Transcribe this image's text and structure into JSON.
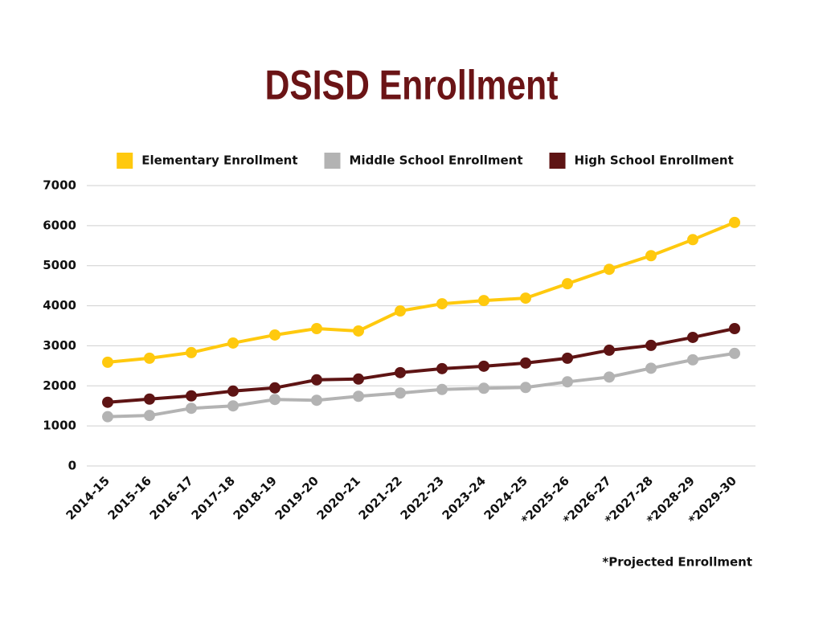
{
  "chart_data": {
    "type": "line",
    "title": "DSISD Enrollment",
    "categories": [
      "2014-15",
      "2015-16",
      "2016-17",
      "2017-18",
      "2018-19",
      "2019-20",
      "2020-21",
      "2021-22",
      "2022-23",
      "2023-24",
      "2024-25",
      "*2025-26",
      "*2026-27",
      "*2027-28",
      "*2028-29",
      "*2029-30"
    ],
    "series": [
      {
        "name": "Elementary Enrollment",
        "color": "#ffc90e",
        "values": [
          2590,
          2690,
          2830,
          3070,
          3270,
          3430,
          3370,
          3870,
          4050,
          4130,
          4190,
          4550,
          4910,
          5250,
          5650,
          6080
        ]
      },
      {
        "name": "Middle School Enrollment",
        "color": "#b3b3b3",
        "values": [
          1230,
          1260,
          1440,
          1500,
          1660,
          1640,
          1740,
          1820,
          1910,
          1940,
          1960,
          2100,
          2220,
          2440,
          2650,
          2810
        ]
      },
      {
        "name": "High School Enrollment",
        "color": "#5e1414",
        "values": [
          1590,
          1670,
          1750,
          1870,
          1950,
          2150,
          2170,
          2330,
          2430,
          2490,
          2570,
          2690,
          2890,
          3010,
          3210,
          3430
        ]
      }
    ],
    "ylim": [
      0,
      7000
    ],
    "yticks": [
      0,
      1000,
      2000,
      3000,
      4000,
      5000,
      6000,
      7000
    ],
    "grid": true,
    "legend": "top",
    "annotation": "*Projected Enrollment"
  }
}
